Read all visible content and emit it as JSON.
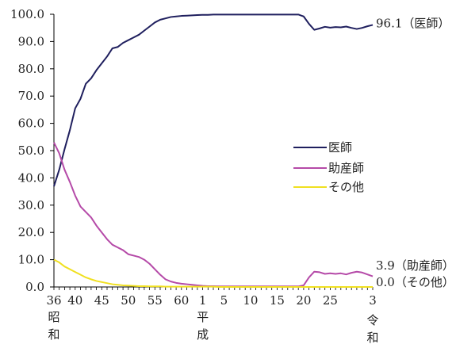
{
  "chart_data": {
    "type": "line",
    "ylim": [
      0,
      100
    ],
    "grid": false,
    "legend_position": "right-center",
    "y_ticks": [
      "0.0",
      "10.0",
      "20.0",
      "30.0",
      "40.0",
      "50.0",
      "60.0",
      "70.0",
      "80.0",
      "90.0",
      "100.0"
    ],
    "x_ticks": [
      {
        "label": "36",
        "year": 1961
      },
      {
        "label": "40",
        "year": 1965
      },
      {
        "label": "45",
        "year": 1970
      },
      {
        "label": "50",
        "year": 1975
      },
      {
        "label": "55",
        "year": 1980
      },
      {
        "label": "60",
        "year": 1985
      },
      {
        "label": "1",
        "year": 1989
      },
      {
        "label": "5",
        "year": 1993
      },
      {
        "label": "10",
        "year": 1998
      },
      {
        "label": "15",
        "year": 2003
      },
      {
        "label": "20",
        "year": 2008
      },
      {
        "label": "25",
        "year": 2013
      },
      {
        "label": "3",
        "year": 2021
      }
    ],
    "era_labels": [
      {
        "text": "昭和",
        "year": 1961
      },
      {
        "text": "平成",
        "year": 1989
      },
      {
        "text": "令和",
        "year": 2021
      }
    ],
    "x": [
      1961,
      1962,
      1963,
      1964,
      1965,
      1966,
      1967,
      1968,
      1969,
      1970,
      1971,
      1972,
      1973,
      1974,
      1975,
      1976,
      1977,
      1978,
      1979,
      1980,
      1981,
      1982,
      1983,
      1984,
      1985,
      1986,
      1987,
      1988,
      1989,
      1990,
      1991,
      1992,
      1993,
      1994,
      1995,
      1996,
      1997,
      1998,
      1999,
      2000,
      2001,
      2002,
      2003,
      2004,
      2005,
      2006,
      2007,
      2008,
      2009,
      2010,
      2011,
      2012,
      2013,
      2014,
      2015,
      2016,
      2017,
      2018,
      2019,
      2020,
      2021
    ],
    "series": [
      {
        "name": "医師",
        "color": "#1f1f5e",
        "end_label": "96.1（医師）",
        "values": [
          36.9,
          43.0,
          50.5,
          57.5,
          65.5,
          69.0,
          74.5,
          76.5,
          79.5,
          82.0,
          84.5,
          87.5,
          88.0,
          89.5,
          90.5,
          91.5,
          92.5,
          94.0,
          95.5,
          97.0,
          98.0,
          98.5,
          99.0,
          99.2,
          99.4,
          99.5,
          99.6,
          99.7,
          99.8,
          99.8,
          99.9,
          99.9,
          99.9,
          99.9,
          99.9,
          99.9,
          99.9,
          99.9,
          99.9,
          99.9,
          99.9,
          99.9,
          99.9,
          99.9,
          99.9,
          99.9,
          99.9,
          99.2,
          96.5,
          94.3,
          94.8,
          95.4,
          95.1,
          95.3,
          95.2,
          95.5,
          95.0,
          94.6,
          95.0,
          95.6,
          96.1
        ]
      },
      {
        "name": "助産師",
        "color": "#b54aa8",
        "end_label": "3.9（助産師）",
        "values": [
          53.0,
          49.0,
          43.0,
          38.5,
          33.5,
          29.5,
          27.5,
          25.5,
          22.5,
          20.0,
          17.5,
          15.5,
          14.5,
          13.5,
          12.0,
          11.5,
          11.0,
          10.0,
          8.5,
          6.5,
          4.5,
          2.8,
          2.0,
          1.5,
          1.2,
          1.0,
          0.8,
          0.6,
          0.4,
          0.3,
          0.3,
          0.2,
          0.2,
          0.2,
          0.2,
          0.2,
          0.2,
          0.2,
          0.2,
          0.2,
          0.2,
          0.2,
          0.2,
          0.2,
          0.2,
          0.2,
          0.2,
          0.6,
          3.5,
          5.6,
          5.4,
          4.8,
          5.0,
          4.8,
          5.0,
          4.6,
          5.2,
          5.6,
          5.3,
          4.6,
          3.9
        ]
      },
      {
        "name": "その他",
        "color": "#f0e020",
        "end_label": "0.0（その他）",
        "values": [
          10.0,
          9.0,
          7.5,
          6.5,
          5.5,
          4.5,
          3.5,
          2.8,
          2.2,
          1.8,
          1.4,
          1.0,
          0.8,
          0.6,
          0.5,
          0.4,
          0.3,
          0.3,
          0.2,
          0.2,
          0.2,
          0.1,
          0.1,
          0.1,
          0.1,
          0.1,
          0.1,
          0.1,
          0.1,
          0.1,
          0.1,
          0.0,
          0.0,
          0.0,
          0.0,
          0.0,
          0.0,
          0.0,
          0.0,
          0.0,
          0.0,
          0.0,
          0.0,
          0.0,
          0.0,
          0.0,
          0.0,
          0.0,
          0.0,
          0.0,
          0.0,
          0.0,
          0.0,
          0.0,
          0.0,
          0.0,
          0.0,
          0.0,
          0.0,
          0.0,
          0.0
        ]
      }
    ]
  }
}
